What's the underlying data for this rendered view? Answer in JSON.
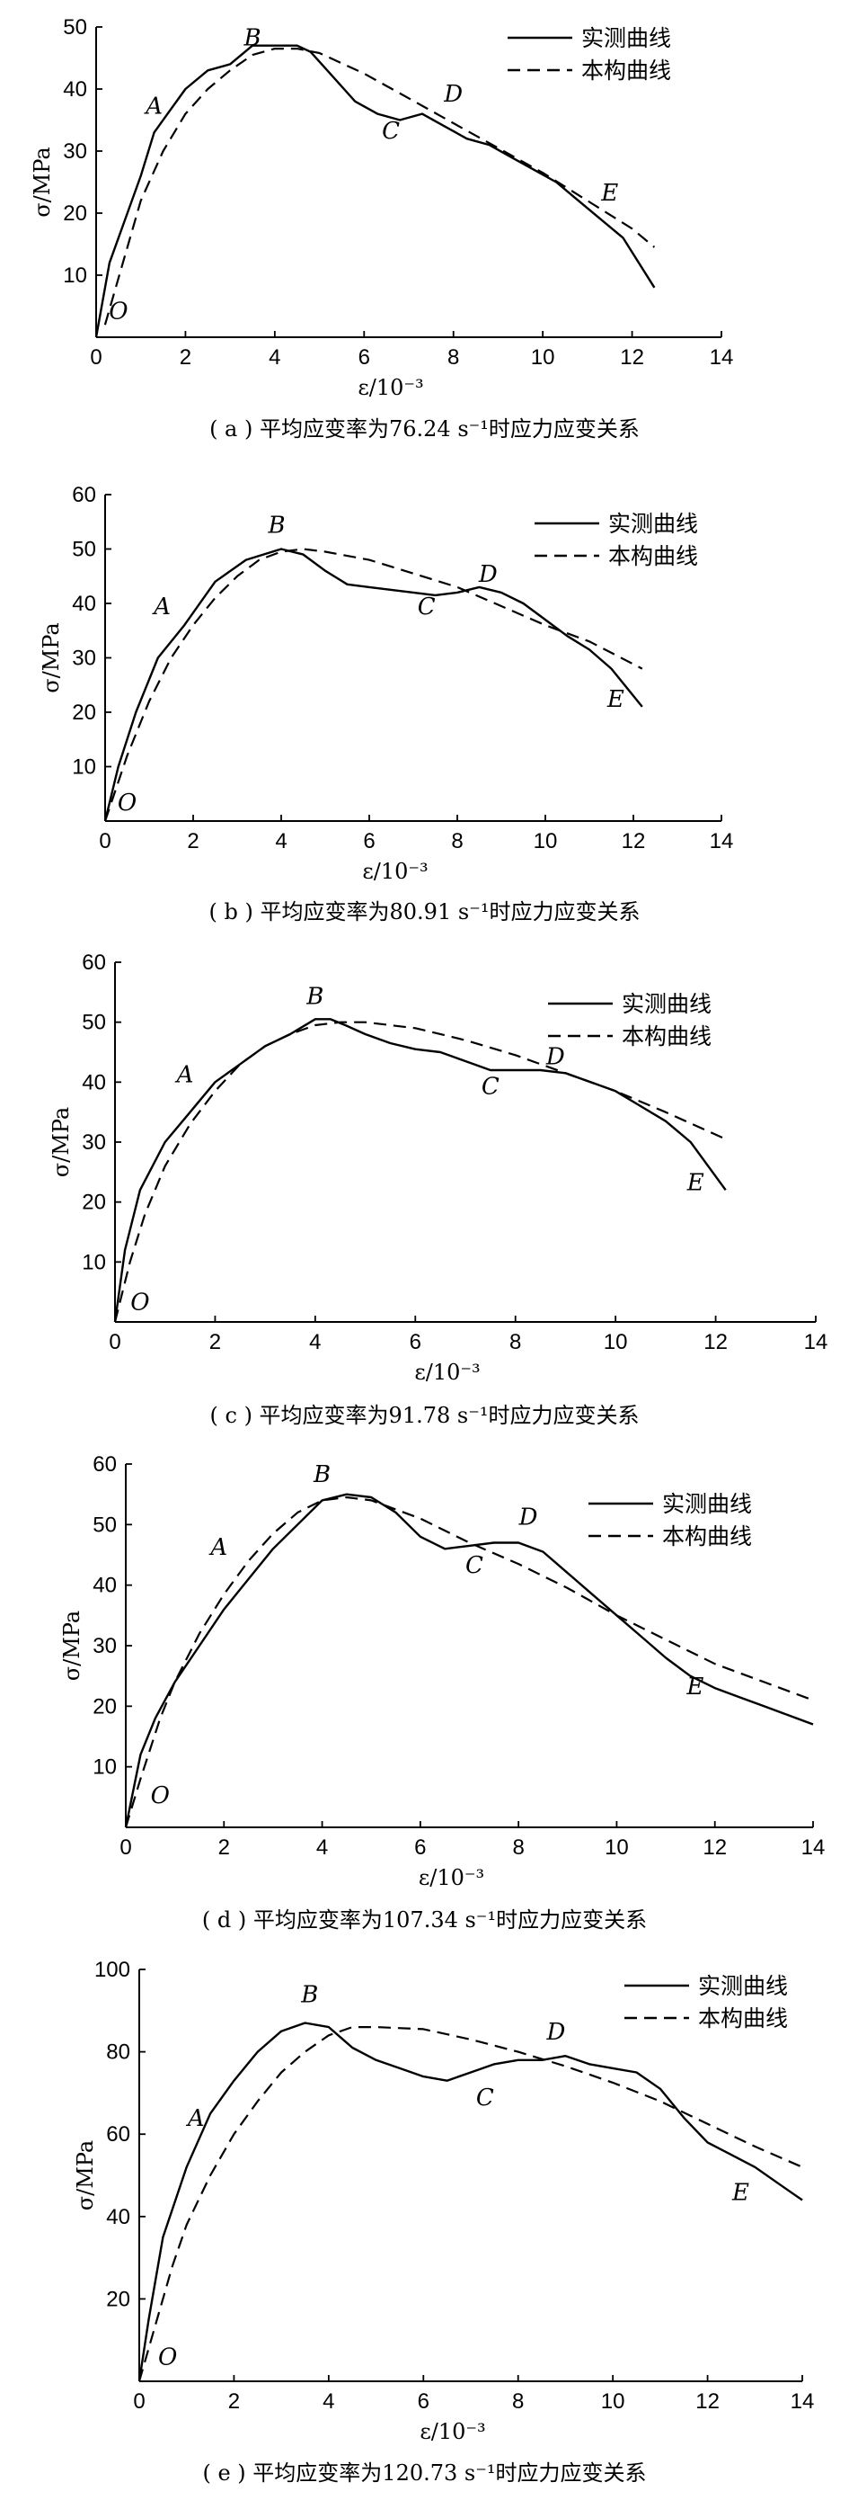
{
  "chart_data": [
    {
      "type": "line",
      "caption": "( a ) 平均应变率为76.24 s⁻¹时应力应变关系",
      "xlabel": "ε/10⁻³",
      "ylabel": "σ/MPa",
      "xlim": [
        0,
        14
      ],
      "ylim": [
        0,
        50
      ],
      "xticks": [
        0,
        2,
        4,
        6,
        8,
        10,
        12,
        14
      ],
      "yticks": [
        10,
        20,
        30,
        40,
        50
      ],
      "legend": "top-right",
      "series": [
        {
          "name": "实测曲线",
          "style": "solid",
          "x": [
            0,
            0.3,
            0.7,
            1.0,
            1.3,
            1.6,
            2.0,
            2.5,
            3.0,
            3.5,
            4.0,
            4.5,
            4.8,
            5.3,
            5.8,
            6.3,
            6.8,
            7.3,
            7.8,
            8.3,
            8.8,
            9.3,
            9.8,
            10.3,
            10.8,
            11.3,
            11.8,
            12.5
          ],
          "y": [
            0,
            12,
            20,
            26,
            33,
            36,
            40,
            43,
            44,
            47,
            47,
            47,
            46,
            42,
            38,
            36,
            35,
            36,
            34,
            32,
            31,
            29,
            27,
            25,
            22,
            19,
            16,
            8
          ]
        },
        {
          "name": "本构曲线",
          "style": "dashed",
          "x": [
            0.2,
            0.6,
            1.0,
            1.5,
            2.0,
            2.5,
            3.0,
            3.5,
            4.0,
            4.5,
            5.0,
            6.0,
            7.0,
            8.0,
            9.0,
            10.0,
            11.0,
            12.0,
            12.5
          ],
          "y": [
            2,
            12,
            22,
            30,
            36,
            40,
            43,
            45.5,
            46.5,
            46.5,
            45.8,
            42.5,
            38.5,
            34.5,
            30.5,
            26.5,
            22,
            17.5,
            14.5
          ]
        }
      ],
      "points": [
        {
          "label": "O",
          "x": 0.5,
          "y": 3
        },
        {
          "label": "A",
          "x": 1.3,
          "y": 36
        },
        {
          "label": "B",
          "x": 3.5,
          "y": 47
        },
        {
          "label": "C",
          "x": 6.6,
          "y": 32
        },
        {
          "label": "D",
          "x": 8.0,
          "y": 38
        },
        {
          "label": "E",
          "x": 11.5,
          "y": 22
        }
      ]
    },
    {
      "type": "line",
      "caption": "( b ) 平均应变率为80.91 s⁻¹时应力应变关系",
      "xlabel": "ε/10⁻³",
      "ylabel": "σ/MPa",
      "xlim": [
        0,
        14
      ],
      "ylim": [
        0,
        60
      ],
      "xticks": [
        0,
        2,
        4,
        6,
        8,
        10,
        12,
        14
      ],
      "yticks": [
        10,
        20,
        30,
        40,
        50,
        60
      ],
      "legend": "top-right",
      "series": [
        {
          "name": "实测曲线",
          "style": "solid",
          "x": [
            0,
            0.3,
            0.7,
            1.2,
            1.8,
            2.5,
            3.2,
            4.0,
            4.5,
            5.0,
            5.5,
            6.0,
            7.0,
            7.5,
            8.0,
            8.5,
            9.0,
            9.5,
            10.0,
            10.5,
            11.0,
            11.5,
            12.2
          ],
          "y": [
            0,
            10,
            20,
            30,
            36,
            44,
            48,
            50,
            49,
            46,
            43.5,
            43,
            42,
            41.5,
            42,
            43,
            42,
            40,
            37,
            34,
            31.5,
            28,
            21
          ]
        },
        {
          "name": "本构曲线",
          "style": "dashed",
          "x": [
            0,
            0.5,
            1.0,
            1.5,
            2.0,
            2.5,
            3.0,
            3.5,
            4.0,
            4.5,
            5.0,
            6.0,
            7.0,
            8.0,
            9.0,
            10.0,
            11.0,
            12.2
          ],
          "y": [
            0,
            12,
            22,
            30,
            36,
            41,
            45,
            48,
            49.5,
            50,
            49.5,
            48,
            45.5,
            43,
            39.5,
            36,
            33,
            28
          ]
        }
      ],
      "points": [
        {
          "label": "O",
          "x": 0.5,
          "y": 2
        },
        {
          "label": "A",
          "x": 1.3,
          "y": 38
        },
        {
          "label": "B",
          "x": 3.9,
          "y": 53
        },
        {
          "label": "C",
          "x": 7.3,
          "y": 38
        },
        {
          "label": "D",
          "x": 8.7,
          "y": 44
        },
        {
          "label": "E",
          "x": 11.6,
          "y": 21
        }
      ]
    },
    {
      "type": "line",
      "caption": "( c ) 平均应变率为91.78 s⁻¹时应力应变关系",
      "xlabel": "ε/10⁻³",
      "ylabel": "σ/MPa",
      "xlim": [
        0,
        14
      ],
      "ylim": [
        0,
        60
      ],
      "xticks": [
        0,
        2,
        4,
        6,
        8,
        10,
        12,
        14
      ],
      "yticks": [
        10,
        20,
        30,
        40,
        50,
        60
      ],
      "legend": "top-right",
      "series": [
        {
          "name": "实测曲线",
          "style": "solid",
          "x": [
            0,
            0.2,
            0.5,
            1.0,
            1.5,
            2.0,
            2.5,
            3.0,
            3.5,
            4.0,
            4.3,
            4.6,
            5.0,
            5.5,
            6.0,
            6.5,
            7.0,
            7.5,
            8.0,
            8.5,
            9.0,
            9.5,
            10.0,
            10.5,
            11.0,
            11.5,
            12.2
          ],
          "y": [
            0,
            12,
            22,
            30,
            35,
            40,
            43,
            46,
            48,
            50.5,
            50.5,
            49.5,
            48,
            46.5,
            45.5,
            45,
            43.5,
            42,
            42,
            42,
            41.5,
            40,
            38.5,
            36,
            33.5,
            30,
            22
          ]
        },
        {
          "name": "本构曲线",
          "style": "dashed",
          "x": [
            0,
            0.3,
            0.6,
            1.0,
            1.5,
            2.0,
            2.5,
            3.0,
            3.5,
            4.0,
            4.5,
            5.0,
            6.0,
            7.0,
            8.0,
            9.0,
            10.0,
            11.0,
            12.2
          ],
          "y": [
            0,
            10,
            18,
            26,
            33,
            38.5,
            43,
            46,
            48,
            49.5,
            50,
            50,
            49,
            47,
            44.5,
            41.5,
            38.5,
            35,
            30.5
          ]
        }
      ],
      "points": [
        {
          "label": "O",
          "x": 0.5,
          "y": 2
        },
        {
          "label": "A",
          "x": 1.4,
          "y": 40
        },
        {
          "label": "B",
          "x": 4.0,
          "y": 53
        },
        {
          "label": "C",
          "x": 7.5,
          "y": 38
        },
        {
          "label": "D",
          "x": 8.8,
          "y": 43
        },
        {
          "label": "E",
          "x": 11.6,
          "y": 22
        }
      ]
    },
    {
      "type": "line",
      "caption": "( d ) 平均应变率为107.34 s⁻¹时应力应变关系",
      "xlabel": "ε/10⁻³",
      "ylabel": "σ/MPa",
      "xlim": [
        0,
        14
      ],
      "ylim": [
        0,
        60
      ],
      "xticks": [
        0,
        2,
        4,
        6,
        8,
        10,
        12,
        14
      ],
      "yticks": [
        10,
        20,
        30,
        40,
        50,
        60
      ],
      "legend": "top-right",
      "series": [
        {
          "name": "实测曲线",
          "style": "solid",
          "x": [
            0,
            0.3,
            0.6,
            1.0,
            1.5,
            2.0,
            2.5,
            3.0,
            3.5,
            4.0,
            4.5,
            5.0,
            5.5,
            6.0,
            6.5,
            7.0,
            7.5,
            8.0,
            8.5,
            9.0,
            9.5,
            10.0,
            10.5,
            11.0,
            11.5,
            12.0,
            12.5,
            13.0,
            13.5,
            14.0
          ],
          "y": [
            0,
            12,
            18,
            24,
            30,
            36,
            41,
            46,
            50,
            54,
            55,
            54.5,
            52,
            48,
            46,
            46.5,
            47,
            47,
            45.5,
            42,
            38.5,
            35,
            31.5,
            28,
            25,
            23,
            21.5,
            20,
            18.5,
            17
          ]
        },
        {
          "name": "本构曲线",
          "style": "dashed",
          "x": [
            0,
            0.3,
            0.7,
            1.0,
            1.5,
            2.0,
            2.5,
            3.0,
            3.5,
            4.0,
            4.5,
            5.0,
            6.0,
            7.0,
            8.0,
            9.0,
            10.0,
            11.0,
            12.0,
            13.0,
            14.0
          ],
          "y": [
            0,
            8,
            18,
            24,
            32,
            38.5,
            44,
            48.5,
            52,
            54,
            54.5,
            54,
            51,
            47,
            43.5,
            39.5,
            35,
            31,
            27,
            24,
            21
          ]
        }
      ],
      "points": [
        {
          "label": "O",
          "x": 0.7,
          "y": 4
        },
        {
          "label": "A",
          "x": 1.9,
          "y": 45
        },
        {
          "label": "B",
          "x": 4.0,
          "y": 57
        },
        {
          "label": "C",
          "x": 7.1,
          "y": 42
        },
        {
          "label": "D",
          "x": 8.2,
          "y": 50
        },
        {
          "label": "E",
          "x": 11.6,
          "y": 22
        }
      ]
    },
    {
      "type": "line",
      "caption": "( e ) 平均应变率为120.73 s⁻¹时应力应变关系",
      "xlabel": "ε/10⁻³",
      "ylabel": "σ/MPa",
      "xlim": [
        0,
        14
      ],
      "ylim": [
        0,
        100
      ],
      "xticks": [
        0,
        2,
        4,
        6,
        8,
        10,
        12,
        14
      ],
      "yticks": [
        20,
        40,
        60,
        80,
        100
      ],
      "legend": "top-right",
      "series": [
        {
          "name": "实测曲线",
          "style": "solid",
          "x": [
            0,
            0.2,
            0.5,
            1.0,
            1.5,
            2.0,
            2.5,
            3.0,
            3.5,
            4.0,
            4.5,
            5.0,
            5.5,
            6.0,
            6.5,
            7.0,
            7.5,
            8.0,
            8.5,
            9.0,
            9.5,
            10.0,
            10.5,
            11.0,
            11.5,
            12.0,
            12.5,
            13.0,
            13.5,
            14.0
          ],
          "y": [
            0,
            15,
            35,
            52,
            65,
            73,
            80,
            85,
            87,
            86,
            81,
            78,
            76,
            74,
            73,
            75,
            77,
            78,
            78,
            79,
            77,
            76,
            75,
            71,
            64,
            58,
            55,
            52,
            48,
            44
          ]
        },
        {
          "name": "本构曲线",
          "style": "dashed",
          "x": [
            0,
            0.3,
            0.7,
            1.0,
            1.5,
            2.0,
            2.5,
            3.0,
            3.5,
            4.0,
            4.5,
            5.0,
            6.0,
            7.0,
            8.0,
            9.0,
            10.0,
            11.0,
            12.0,
            13.0,
            14.0
          ],
          "y": [
            0,
            12,
            28,
            38,
            50,
            60,
            68,
            75,
            80,
            84,
            86,
            86,
            85.5,
            83,
            80,
            76.5,
            72.5,
            68,
            62.5,
            57,
            52
          ]
        }
      ],
      "points": [
        {
          "label": "O",
          "x": 0.6,
          "y": 4
        },
        {
          "label": "A",
          "x": 1.2,
          "y": 62
        },
        {
          "label": "B",
          "x": 3.6,
          "y": 92
        },
        {
          "label": "C",
          "x": 7.3,
          "y": 67
        },
        {
          "label": "D",
          "x": 8.8,
          "y": 83
        },
        {
          "label": "E",
          "x": 12.7,
          "y": 44
        }
      ]
    }
  ]
}
